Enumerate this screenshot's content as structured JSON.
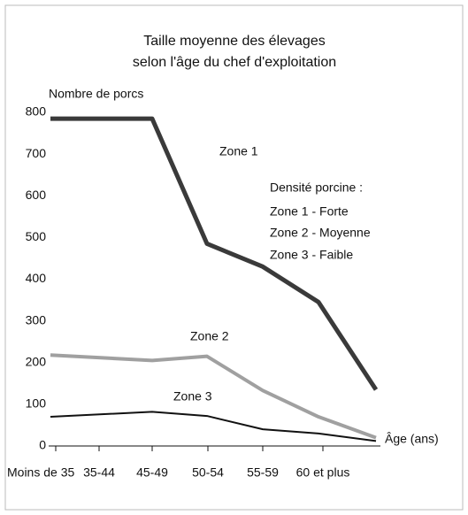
{
  "chart_data": {
    "type": "line",
    "title": [
      "Taille moyenne des élevages",
      "selon l'âge du chef d'exploitation"
    ],
    "y_label": "Nombre de porcs",
    "x_label": "Âge (ans)",
    "categories": [
      "Moins de 35",
      "35-44",
      "45-49",
      "50-54",
      "55-59",
      "60 et plus"
    ],
    "series": [
      {
        "name": "Zone 1",
        "color": "#3a3a3a",
        "values": [
          785,
          785,
          485,
          430,
          345,
          135
        ]
      },
      {
        "name": "Zone 2",
        "color": "#a0a0a0",
        "values": [
          218,
          205,
          215,
          133,
          70,
          20
        ]
      },
      {
        "name": "Zone 3",
        "color": "#111111",
        "values": [
          70,
          82,
          72,
          40,
          30,
          12
        ]
      }
    ],
    "annotations": [
      "Densité porcine :",
      "Zone 1 - Forte",
      "Zone 2 - Moyenne",
      "Zone 3 - Faible"
    ],
    "ylim": [
      0,
      800
    ],
    "yticks": [
      0,
      100,
      200,
      300,
      400,
      500,
      600,
      700,
      800
    ]
  }
}
